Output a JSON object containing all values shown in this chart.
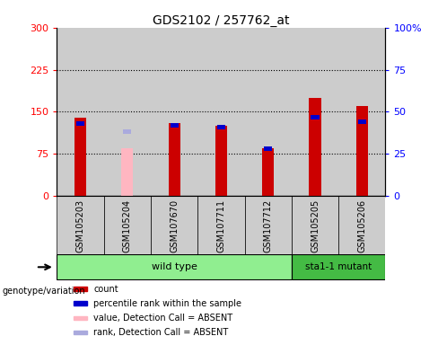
{
  "title": "GDS2102 / 257762_at",
  "samples": [
    "GSM105203",
    "GSM105204",
    "GSM107670",
    "GSM107711",
    "GSM107712",
    "GSM105205",
    "GSM105206"
  ],
  "count_values": [
    140,
    null,
    130,
    125,
    85,
    175,
    160
  ],
  "count_absent": [
    null,
    85,
    null,
    null,
    null,
    null,
    null
  ],
  "rank_values": [
    43,
    null,
    42,
    41,
    28,
    47,
    44
  ],
  "rank_absent": [
    null,
    38,
    null,
    null,
    null,
    null,
    null
  ],
  "detection_absent": [
    false,
    true,
    false,
    false,
    false,
    false,
    false
  ],
  "ylim_left": [
    0,
    300
  ],
  "ylim_right": [
    0,
    100
  ],
  "yticks_left": [
    0,
    75,
    150,
    225,
    300
  ],
  "yticks_right": [
    0,
    25,
    50,
    75,
    100
  ],
  "ytick_labels_left": [
    "0",
    "75",
    "150",
    "225",
    "300"
  ],
  "ytick_labels_right": [
    "0",
    "25",
    "50",
    "75",
    "100%"
  ],
  "wild_type_indices": [
    0,
    1,
    2,
    3,
    4
  ],
  "mutant_indices": [
    5,
    6
  ],
  "wild_type_label": "wild type",
  "mutant_label": "sta1-1 mutant",
  "genotype_label": "genotype/variation",
  "bar_width": 0.25,
  "count_color": "#CC0000",
  "rank_color": "#0000CC",
  "absent_count_color": "#FFB6C1",
  "absent_rank_color": "#AAAADD",
  "col_bg_color": "#CCCCCC",
  "wild_type_bg": "#90EE90",
  "mutant_bg": "#44BB44",
  "legend_items": [
    {
      "label": "count",
      "color": "#CC0000"
    },
    {
      "label": "percentile rank within the sample",
      "color": "#0000CC"
    },
    {
      "label": "value, Detection Call = ABSENT",
      "color": "#FFB6C1"
    },
    {
      "label": "rank, Detection Call = ABSENT",
      "color": "#AAAADD"
    }
  ]
}
